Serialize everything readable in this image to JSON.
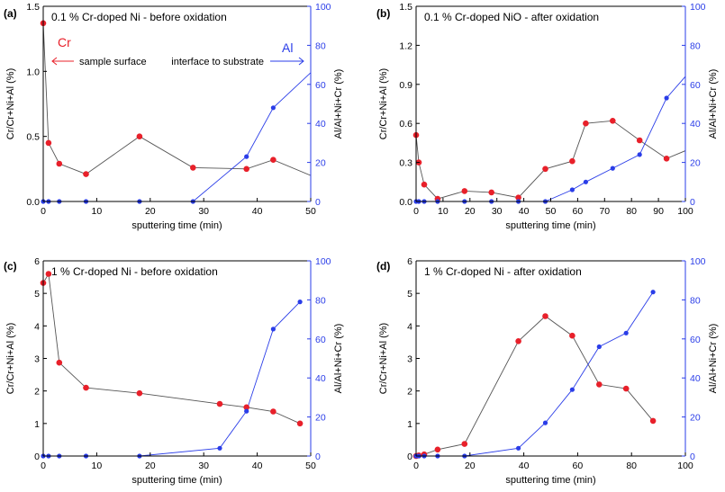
{
  "chart_data": [
    {
      "type": "line",
      "panel_label": "(a)",
      "title": "0.1 % Cr-doped Ni - before oxidation",
      "xlabel": "sputtering time (min)",
      "ylabel_left": "Cr/Cr+Ni+Al (%)",
      "ylabel_right": "Al/Al+Ni+Cr (%)",
      "xlim": [
        0,
        50
      ],
      "ylim_left": [
        0,
        1.5
      ],
      "ylim_right": [
        0,
        100
      ],
      "xticks": [
        "0",
        "10",
        "20",
        "30",
        "40",
        "50"
      ],
      "yticks_left": [
        "0.0",
        "0.5",
        "1.0",
        "1.5"
      ],
      "yticks_right": [
        "0",
        "20",
        "40",
        "60",
        "80",
        "100"
      ],
      "series": [
        {
          "name": "Cr",
          "axis": "left",
          "color": "#e8202a",
          "line_color": "#555555",
          "x": [
            0,
            1,
            3,
            8,
            18,
            28,
            38,
            43,
            50
          ],
          "y": [
            1.37,
            0.45,
            0.29,
            0.21,
            0.5,
            0.26,
            0.25,
            0.32,
            0.2
          ],
          "markers": [
            true,
            true,
            true,
            true,
            true,
            true,
            true,
            true,
            false
          ]
        },
        {
          "name": "Al",
          "axis": "right",
          "color": "#2a3de8",
          "line_color": "#2a3de8",
          "x": [
            0,
            1,
            3,
            8,
            18,
            28,
            38,
            43,
            50
          ],
          "y": [
            0,
            0,
            0,
            0,
            0,
            0,
            23,
            48,
            66
          ],
          "markers": [
            true,
            true,
            true,
            true,
            true,
            true,
            true,
            true,
            false
          ]
        }
      ],
      "annotations": {
        "cr_label": "Cr",
        "al_label": "Al",
        "surface_text": "sample surface",
        "interface_text": "interface to substrate"
      }
    },
    {
      "type": "line",
      "panel_label": "(b)",
      "title": "0.1 % Cr-doped NiO - after oxidation",
      "xlabel": "sputtering time (min)",
      "ylabel_left": "Cr/Cr+Ni+Al (%)",
      "ylabel_right": "Al/Al+Ni+Cr (%)",
      "xlim": [
        0,
        100
      ],
      "ylim_left": [
        0,
        1.5
      ],
      "ylim_right": [
        0,
        100
      ],
      "xticks": [
        "0",
        "10",
        "20",
        "30",
        "40",
        "50",
        "60",
        "70",
        "80",
        "90",
        "100"
      ],
      "yticks_left": [
        "0.0",
        "0.3",
        "0.6",
        "0.9",
        "1.2",
        "1.5"
      ],
      "yticks_right": [
        "0",
        "20",
        "40",
        "60",
        "80",
        "100"
      ],
      "series": [
        {
          "name": "Cr",
          "axis": "left",
          "color": "#e8202a",
          "line_color": "#555555",
          "x": [
            0,
            1,
            3,
            8,
            18,
            28,
            38,
            48,
            58,
            63,
            73,
            83,
            93,
            100
          ],
          "y": [
            0.51,
            0.3,
            0.13,
            0.02,
            0.08,
            0.07,
            0.03,
            0.25,
            0.31,
            0.6,
            0.62,
            0.47,
            0.33,
            0.39
          ],
          "markers": [
            true,
            true,
            true,
            true,
            true,
            true,
            true,
            true,
            true,
            true,
            true,
            true,
            true,
            false
          ]
        },
        {
          "name": "Al",
          "axis": "right",
          "color": "#2a3de8",
          "line_color": "#2a3de8",
          "x": [
            0,
            1,
            3,
            8,
            18,
            28,
            38,
            48,
            58,
            63,
            73,
            83,
            93,
            100
          ],
          "y": [
            0,
            0,
            0,
            0,
            0,
            0,
            0,
            0,
            6,
            10,
            17,
            24,
            53,
            64
          ],
          "markers": [
            true,
            true,
            true,
            true,
            true,
            true,
            true,
            true,
            true,
            true,
            true,
            true,
            true,
            false
          ]
        }
      ]
    },
    {
      "type": "line",
      "panel_label": "(c)",
      "title": "1 % Cr-doped Ni - before oxidation",
      "xlabel": "sputtering time (min)",
      "ylabel_left": "Cr/Cr+Ni+Al (%)",
      "ylabel_right": "Al/Al+Ni+Cr (%)",
      "xlim": [
        0,
        50
      ],
      "ylim_left": [
        0,
        6
      ],
      "ylim_right": [
        0,
        100
      ],
      "xticks": [
        "0",
        "10",
        "20",
        "30",
        "40",
        "50"
      ],
      "yticks_left": [
        "0",
        "1",
        "2",
        "3",
        "4",
        "5",
        "6"
      ],
      "yticks_right": [
        "0",
        "20",
        "40",
        "60",
        "80",
        "100"
      ],
      "series": [
        {
          "name": "Cr",
          "axis": "left",
          "color": "#e8202a",
          "line_color": "#555555",
          "x": [
            0,
            1,
            3,
            8,
            18,
            33,
            38,
            43,
            48
          ],
          "y": [
            5.32,
            5.6,
            2.87,
            2.1,
            1.93,
            1.6,
            1.5,
            1.37,
            1.0
          ],
          "markers": [
            true,
            true,
            true,
            true,
            true,
            true,
            true,
            true,
            true
          ]
        },
        {
          "name": "Al",
          "axis": "right",
          "color": "#2a3de8",
          "line_color": "#2a3de8",
          "x": [
            0,
            1,
            3,
            8,
            18,
            33,
            38,
            43,
            48
          ],
          "y": [
            0,
            0,
            0,
            0,
            0,
            4,
            23,
            65,
            79
          ],
          "markers": [
            true,
            true,
            true,
            true,
            true,
            true,
            true,
            true,
            true
          ]
        }
      ]
    },
    {
      "type": "line",
      "panel_label": "(d)",
      "title": "1 % Cr-doped Ni - after oxidation",
      "xlabel": "sputtering time (min)",
      "ylabel_left": "Cr/Cr+Ni+Al (%)",
      "ylabel_right": "Al/Al+Ni+Cr (%)",
      "xlim": [
        0,
        100
      ],
      "ylim_left": [
        0,
        6
      ],
      "ylim_right": [
        0,
        100
      ],
      "xticks": [
        "0",
        "20",
        "40",
        "60",
        "80",
        "100"
      ],
      "yticks_left": [
        "0",
        "1",
        "2",
        "3",
        "4",
        "5",
        "6"
      ],
      "yticks_right": [
        "0",
        "20",
        "40",
        "60",
        "80",
        "100"
      ],
      "series": [
        {
          "name": "Cr",
          "axis": "left",
          "color": "#e8202a",
          "line_color": "#555555",
          "x": [
            0,
            1,
            3,
            8,
            18,
            38,
            48,
            58,
            68,
            78,
            88
          ],
          "y": [
            0,
            0.02,
            0.05,
            0.2,
            0.37,
            3.53,
            4.3,
            3.7,
            2.2,
            2.07,
            1.08
          ],
          "markers": [
            true,
            true,
            true,
            true,
            true,
            true,
            true,
            true,
            true,
            true,
            true
          ]
        },
        {
          "name": "Al",
          "axis": "right",
          "color": "#2a3de8",
          "line_color": "#2a3de8",
          "x": [
            0,
            1,
            3,
            8,
            18,
            38,
            48,
            58,
            68,
            78,
            88
          ],
          "y": [
            0,
            0,
            0,
            0,
            0,
            4,
            17,
            34,
            56,
            63,
            84
          ],
          "markers": [
            true,
            true,
            true,
            true,
            true,
            true,
            true,
            true,
            true,
            true,
            true
          ]
        }
      ]
    }
  ]
}
